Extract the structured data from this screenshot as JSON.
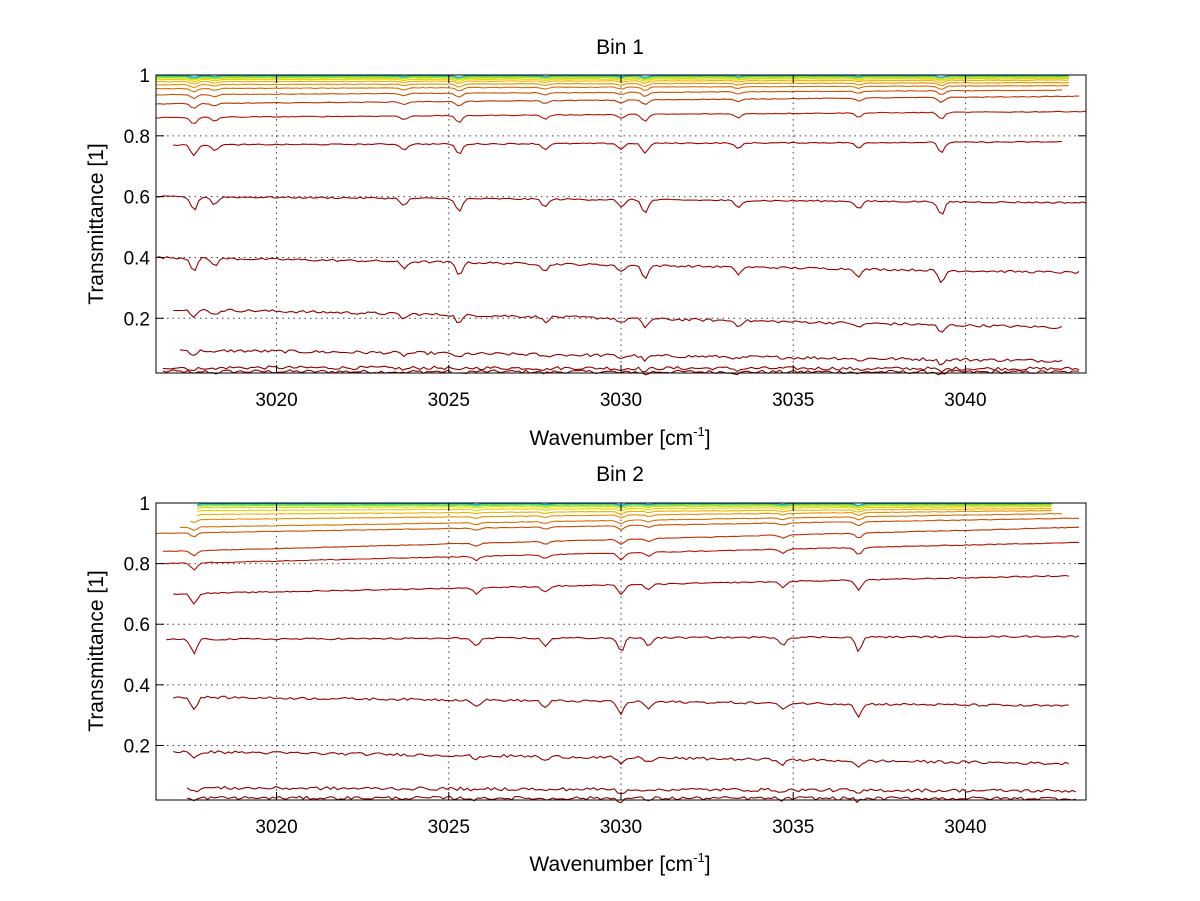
{
  "chart_data": [
    {
      "type": "line",
      "title": "Bin 1",
      "xlabel": "Wavenumber [cm",
      "xlabel_sup": "-1",
      "xlabel_end": "]",
      "ylabel": "Transmittance [1]",
      "xlim": [
        3016.5,
        3043.5
      ],
      "ylim": [
        0.02,
        1.0
      ],
      "x_ticks": [
        3020,
        3025,
        3030,
        3035,
        3040
      ],
      "x_tick_labels": [
        "3020",
        "3025",
        "3030",
        "3035",
        "3040"
      ],
      "y_ticks": [
        0.2,
        0.4,
        0.6,
        0.8,
        1.0
      ],
      "y_tick_labels": [
        "0.2",
        "0.4",
        "0.6",
        "0.8",
        "1"
      ],
      "grid": true,
      "absorption_lines_cm-1": [
        3017.6,
        3018.2,
        3023.7,
        3025.3,
        3027.8,
        3030.0,
        3030.7,
        3033.4,
        3036.9,
        3039.3
      ],
      "series": [
        {
          "color": "#8b0000",
          "x": [
            3016.7,
            3043.3
          ],
          "y": [
            0.025,
            0.023
          ]
        },
        {
          "color": "#8b0000",
          "x": [
            3016.7,
            3043.3
          ],
          "y": [
            0.038,
            0.034
          ]
        },
        {
          "color": "#8b0000",
          "x": [
            3017.2,
            3042.8
          ],
          "y": [
            0.095,
            0.06
          ]
        },
        {
          "color": "#930000",
          "x": [
            3017.0,
            3042.8
          ],
          "y": [
            0.23,
            0.17
          ]
        },
        {
          "color": "#9a0000",
          "x": [
            3016.5,
            3043.3
          ],
          "y": [
            0.4,
            0.35
          ]
        },
        {
          "color": "#a00000",
          "x": [
            3016.5,
            3043.5
          ],
          "y": [
            0.6,
            0.58
          ]
        },
        {
          "color": "#a80000",
          "x": [
            3017.0,
            3042.8
          ],
          "y": [
            0.77,
            0.78
          ]
        },
        {
          "color": "#b41400",
          "x": [
            3016.5,
            3043.5
          ],
          "y": [
            0.86,
            0.88
          ]
        },
        {
          "color": "#c03200",
          "x": [
            3016.5,
            3043.3
          ],
          "y": [
            0.905,
            0.93
          ]
        },
        {
          "color": "#cc5000",
          "x": [
            3016.5,
            3042.8
          ],
          "y": [
            0.935,
            0.95
          ]
        },
        {
          "color": "#da7000",
          "x": [
            3016.5,
            3043.0
          ],
          "y": [
            0.955,
            0.965
          ]
        },
        {
          "color": "#e89000",
          "x": [
            3016.5,
            3043.0
          ],
          "y": [
            0.968,
            0.975
          ]
        },
        {
          "color": "#f0b000",
          "x": [
            3016.5,
            3043.0
          ],
          "y": [
            0.978,
            0.983
          ]
        },
        {
          "color": "#e6d200",
          "x": [
            3016.5,
            3043.0
          ],
          "y": [
            0.985,
            0.988
          ]
        },
        {
          "color": "#c8e000",
          "x": [
            3016.5,
            3043.0
          ],
          "y": [
            0.99,
            0.992
          ]
        },
        {
          "color": "#9ee000",
          "x": [
            3016.5,
            3043.0
          ],
          "y": [
            0.993,
            0.995
          ]
        },
        {
          "color": "#40d8b0",
          "x": [
            3016.5,
            3043.0
          ],
          "y": [
            0.996,
            0.997
          ]
        },
        {
          "color": "#00a8e0",
          "x": [
            3016.5,
            3043.0
          ],
          "y": [
            0.998,
            0.998
          ]
        }
      ]
    },
    {
      "type": "line",
      "title": "Bin 2",
      "xlabel": "Wavenumber [cm",
      "xlabel_sup": "-1",
      "xlabel_end": "]",
      "ylabel": "Transmittance [1]",
      "xlim": [
        3016.5,
        3043.5
      ],
      "ylim": [
        0.02,
        1.0
      ],
      "x_ticks": [
        3020,
        3025,
        3030,
        3035,
        3040
      ],
      "x_tick_labels": [
        "3020",
        "3025",
        "3030",
        "3035",
        "3040"
      ],
      "y_ticks": [
        0.2,
        0.4,
        0.6,
        0.8,
        1.0
      ],
      "y_tick_labels": [
        "0.2",
        "0.4",
        "0.6",
        "0.8",
        "1"
      ],
      "grid": true,
      "absorption_lines_cm-1": [
        3017.6,
        3025.8,
        3027.8,
        3030.0,
        3030.8,
        3034.7,
        3036.9
      ],
      "series": [
        {
          "color": "#8b0000",
          "x": [
            3017.4,
            3043.2
          ],
          "y": [
            0.027,
            0.025
          ]
        },
        {
          "color": "#8b0000",
          "x": [
            3017.4,
            3043.2
          ],
          "y": [
            0.06,
            0.05
          ]
        },
        {
          "color": "#930000",
          "x": [
            3017.0,
            3043.0
          ],
          "y": [
            0.18,
            0.14
          ]
        },
        {
          "color": "#9a0000",
          "x": [
            3017.0,
            3043.0
          ],
          "y": [
            0.36,
            0.33
          ]
        },
        {
          "color": "#a00000",
          "x": [
            3016.8,
            3043.3
          ],
          "y": [
            0.55,
            0.56
          ]
        },
        {
          "color": "#a80000",
          "x": [
            3017.0,
            3043.0
          ],
          "y": [
            0.7,
            0.76
          ]
        },
        {
          "color": "#b41400",
          "x": [
            3016.7,
            3043.3
          ],
          "y": [
            0.8,
            0.87
          ]
        },
        {
          "color": "#c03200",
          "x": [
            3016.7,
            3043.3
          ],
          "y": [
            0.84,
            0.92
          ]
        },
        {
          "color": "#cc5000",
          "x": [
            3016.5,
            3043.3
          ],
          "y": [
            0.9,
            0.95
          ]
        },
        {
          "color": "#da7000",
          "x": [
            3017.2,
            3042.8
          ],
          "y": [
            0.92,
            0.965
          ]
        },
        {
          "color": "#e89000",
          "x": [
            3017.5,
            3042.5
          ],
          "y": [
            0.945,
            0.975
          ]
        },
        {
          "color": "#f0b000",
          "x": [
            3017.7,
            3042.5
          ],
          "y": [
            0.962,
            0.982
          ]
        },
        {
          "color": "#e6d200",
          "x": [
            3017.7,
            3042.5
          ],
          "y": [
            0.975,
            0.988
          ]
        },
        {
          "color": "#c8e000",
          "x": [
            3017.7,
            3042.5
          ],
          "y": [
            0.985,
            0.992
          ]
        },
        {
          "color": "#9ee000",
          "x": [
            3017.7,
            3042.5
          ],
          "y": [
            0.991,
            0.995
          ]
        },
        {
          "color": "#40d8b0",
          "x": [
            3017.7,
            3042.5
          ],
          "y": [
            0.995,
            0.997
          ]
        },
        {
          "color": "#00a8e0",
          "x": [
            3017.7,
            3042.5
          ],
          "y": [
            0.998,
            0.998
          ]
        }
      ]
    }
  ]
}
